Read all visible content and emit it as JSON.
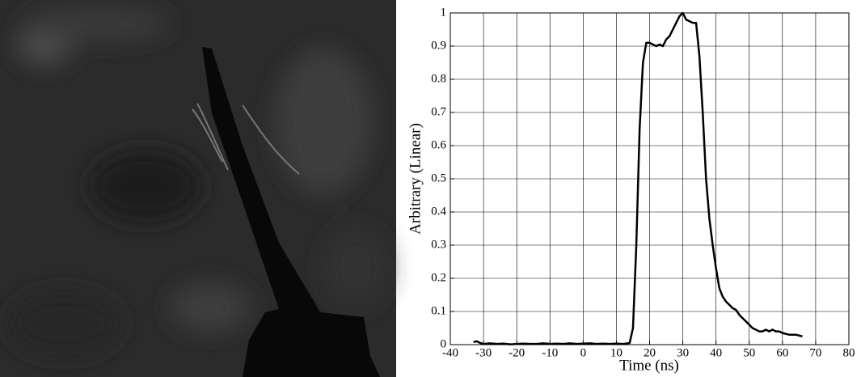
{
  "chart_data": {
    "type": "line",
    "xlabel": "Time (ns)",
    "ylabel": "Arbitrary (Linear)",
    "x": [
      -33,
      -32,
      -31,
      -30,
      -28,
      -26,
      -24,
      -22,
      -20,
      -18,
      -16,
      -14,
      -12,
      -10,
      -8,
      -6,
      -4,
      -2,
      0,
      2,
      4,
      6,
      8,
      10,
      12,
      14,
      15,
      16,
      17,
      18,
      19,
      20,
      21,
      22,
      23,
      24,
      25,
      26,
      27,
      28,
      29,
      30,
      31,
      32,
      33,
      34,
      35,
      36,
      37,
      38,
      39,
      40,
      41,
      42,
      43,
      44,
      45,
      46,
      47,
      48,
      49,
      50,
      51,
      52,
      53,
      54,
      55,
      56,
      57,
      58,
      59,
      60,
      62,
      64,
      66
    ],
    "values": [
      0.008,
      0.01,
      0.005,
      0.002,
      0.004,
      0.002,
      0.003,
      0.001,
      0.002,
      0.003,
      0.002,
      0.002,
      0.004,
      0.002,
      0.003,
      0.002,
      0.004,
      0.002,
      0.003,
      0.004,
      0.002,
      0.003,
      0.002,
      0.003,
      0.002,
      0.005,
      0.05,
      0.3,
      0.65,
      0.85,
      0.91,
      0.91,
      0.905,
      0.9,
      0.905,
      0.9,
      0.92,
      0.93,
      0.95,
      0.97,
      0.99,
      1.0,
      0.98,
      0.975,
      0.97,
      0.97,
      0.87,
      0.7,
      0.5,
      0.38,
      0.3,
      0.23,
      0.17,
      0.145,
      0.13,
      0.12,
      0.11,
      0.105,
      0.09,
      0.08,
      0.07,
      0.06,
      0.05,
      0.045,
      0.04,
      0.04,
      0.045,
      0.04,
      0.045,
      0.04,
      0.04,
      0.035,
      0.03,
      0.03,
      0.025
    ],
    "color": "#000000",
    "xlim": [
      -40,
      80
    ],
    "xticks": [
      -40,
      -30,
      -20,
      -10,
      0,
      10,
      20,
      30,
      40,
      50,
      60,
      70,
      80
    ],
    "ylim": [
      0,
      1
    ],
    "yticks": [
      0,
      0.1,
      0.2,
      0.3,
      0.4,
      0.5,
      0.6,
      0.7,
      0.8,
      0.9,
      1
    ],
    "grid": true
  }
}
